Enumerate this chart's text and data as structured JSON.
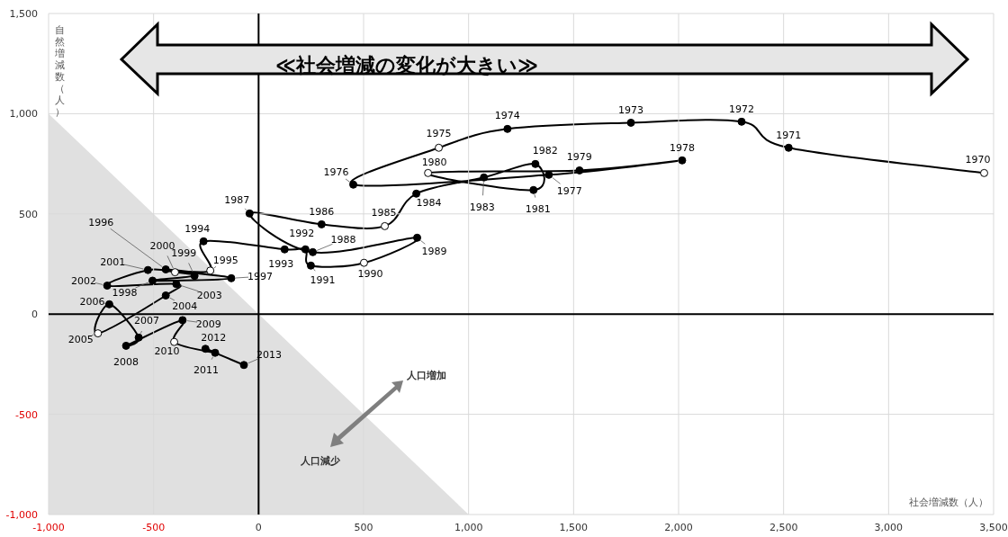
{
  "chart_data": {
    "type": "line",
    "xlabel": "社会増減数（人）",
    "ylabel": "自然増減数（人）",
    "xlim": [
      -1000,
      3500
    ],
    "ylim": [
      -1000,
      1500
    ],
    "xticks": [
      {
        "value": -1000,
        "label": "-1,000"
      },
      {
        "value": -500,
        "label": "-500"
      },
      0,
      500,
      {
        "value": 1000,
        "label": "1,000"
      },
      {
        "value": 1500,
        "label": "1,500"
      },
      {
        "value": 2000,
        "label": "2,000"
      },
      {
        "value": 2500,
        "label": "2,500"
      },
      {
        "value": 3000,
        "label": "3,000"
      },
      {
        "value": 3500,
        "label": "3,500"
      }
    ],
    "yticks": [
      {
        "value": -1000,
        "label": "-1,000"
      },
      {
        "value": -500,
        "label": "-500"
      },
      0,
      500,
      {
        "value": 1000,
        "label": "1,000"
      },
      {
        "value": 1500,
        "label": "1,500"
      }
    ],
    "grid": true,
    "line_style": "solid",
    "series": [
      {
        "type": "area",
        "color": "#e0e0e0",
        "x": [
          -1000,
          1000
        ],
        "values": [
          1000,
          -1000
        ]
      },
      {
        "type": "line",
        "marker": "circle",
        "color": "#000000",
        "x": [
          3455,
          2524,
          2300,
          1773,
          1185,
          858,
          451,
          1382,
          2017,
          1528,
          807,
          1309,
          1318,
          1073,
          751,
          601,
          300,
          -43,
          258,
          755,
          502,
          249,
          223,
          124,
          -262,
          -230,
          -442,
          -130,
          -505,
          -305,
          -398,
          -527,
          -721,
          -392,
          -442,
          -765,
          -711,
          -571,
          -631,
          -362,
          -402,
          -207,
          -253,
          -70
        ],
        "values": [
          704,
          830,
          960,
          955,
          924,
          830,
          646,
          695,
          767,
          717,
          704,
          619,
          749,
          682,
          601,
          439,
          448,
          502,
          309,
          381,
          256,
          242,
          323,
          323,
          363,
          217,
          223,
          179,
          167,
          191,
          209,
          220,
          142,
          150,
          93,
          -96,
          49,
          -117,
          -158,
          -30,
          -139,
          -193,
          -173,
          -254
        ],
        "colors": [
          "#ffffff",
          "#000000",
          "#000000",
          "#000000",
          "#000000",
          "#ffffff",
          "#000000",
          "#000000",
          "#000000",
          "#000000",
          "#ffffff",
          "#000000",
          "#000000",
          "#000000",
          "#000000",
          "#ffffff",
          "#000000",
          "#000000",
          "#000000",
          "#000000",
          "#ffffff",
          "#000000",
          "#000000",
          "#000000",
          "#000000",
          "#ffffff",
          "#000000",
          "#000000",
          "#000000",
          "#000000",
          "#ffffff",
          "#000000",
          "#000000",
          "#000000",
          "#000000",
          "#ffffff",
          "#000000",
          "#000000",
          "#000000",
          "#000000",
          "#ffffff",
          "#000000",
          "#000000",
          "#000000"
        ]
      }
    ],
    "annotations": [
      "≪社会増減の変化が大きい≫",
      "人口増加",
      "人口減少",
      {
        "text": "1970",
        "x": 3455,
        "y": 704
      },
      {
        "text": "1971",
        "x": 2524,
        "y": 830
      },
      {
        "text": "1972",
        "x": 2300,
        "y": 960
      },
      {
        "text": "1973",
        "x": 1773,
        "y": 955
      },
      {
        "text": "1974",
        "x": 1185,
        "y": 924
      },
      {
        "text": "1975",
        "x": 858,
        "y": 830
      },
      {
        "text": "1976",
        "x": 451,
        "y": 646
      },
      {
        "text": "1977",
        "x": 1382,
        "y": 695
      },
      {
        "text": "1978",
        "x": 2017,
        "y": 767
      },
      {
        "text": "1979",
        "x": 1528,
        "y": 717
      },
      {
        "text": "1980",
        "x": 807,
        "y": 704
      },
      {
        "text": "1981",
        "x": 1309,
        "y": 619
      },
      {
        "text": "1982",
        "x": 1318,
        "y": 749
      },
      {
        "text": "1983",
        "x": 1073,
        "y": 682
      },
      {
        "text": "1984",
        "x": 751,
        "y": 601
      },
      {
        "text": "1985",
        "x": 601,
        "y": 439
      },
      {
        "text": "1986",
        "x": 300,
        "y": 448
      },
      {
        "text": "1987",
        "x": -43,
        "y": 502
      },
      {
        "text": "1988",
        "x": 258,
        "y": 309
      },
      {
        "text": "1989",
        "x": 755,
        "y": 381
      },
      {
        "text": "1990",
        "x": 502,
        "y": 256
      },
      {
        "text": "1991",
        "x": 249,
        "y": 242
      },
      {
        "text": "1992",
        "x": 223,
        "y": 323
      },
      {
        "text": "1993",
        "x": 124,
        "y": 323
      },
      {
        "text": "1994",
        "x": -262,
        "y": 363
      },
      {
        "text": "1995",
        "x": -230,
        "y": 217
      },
      {
        "text": "1996",
        "x": -442,
        "y": 223
      },
      {
        "text": "1997",
        "x": -130,
        "y": 179
      },
      {
        "text": "1998",
        "x": -505,
        "y": 167
      },
      {
        "text": "1999",
        "x": -305,
        "y": 191
      },
      {
        "text": "2000",
        "x": -398,
        "y": 209
      },
      {
        "text": "2001",
        "x": -527,
        "y": 220
      },
      {
        "text": "2002",
        "x": -721,
        "y": 142
      },
      {
        "text": "2003",
        "x": -392,
        "y": 150
      },
      {
        "text": "2004",
        "x": -442,
        "y": 93
      },
      {
        "text": "2005",
        "x": -765,
        "y": -96
      },
      {
        "text": "2006",
        "x": -711,
        "y": 49
      },
      {
        "text": "2007",
        "x": -571,
        "y": -117
      },
      {
        "text": "2008",
        "x": -631,
        "y": -158
      },
      {
        "text": "2009",
        "x": -362,
        "y": -30
      },
      {
        "text": "2010",
        "x": -402,
        "y": -139
      },
      {
        "text": "2011",
        "x": -207,
        "y": -193
      },
      {
        "text": "2012",
        "x": -253,
        "y": -173
      },
      {
        "text": "2013",
        "x": -70,
        "y": -254
      }
    ]
  }
}
